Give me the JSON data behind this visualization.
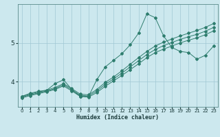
{
  "xlabel": "Humidex (Indice chaleur)",
  "bg_color": "#cce8ee",
  "line_color": "#2e7d6e",
  "grid_color": "#a0c8d4",
  "xlim": [
    -0.5,
    23.5
  ],
  "ylim": [
    3.35,
    6.0
  ],
  "yticks": [
    4,
    5
  ],
  "xticks": [
    0,
    1,
    2,
    3,
    4,
    5,
    6,
    7,
    8,
    9,
    10,
    11,
    12,
    13,
    14,
    15,
    16,
    17,
    18,
    19,
    20,
    21,
    22,
    23
  ],
  "series": {
    "line_volatile": {
      "x": [
        0,
        1,
        2,
        3,
        4,
        5,
        6,
        7,
        8,
        9,
        10,
        11,
        12,
        13,
        14,
        15,
        16,
        17,
        18,
        19,
        20,
        21,
        22,
        23
      ],
      "y": [
        3.62,
        3.7,
        3.75,
        3.78,
        3.95,
        4.05,
        3.8,
        3.62,
        3.62,
        4.05,
        4.38,
        4.55,
        4.72,
        4.95,
        5.25,
        5.75,
        5.65,
        5.18,
        4.88,
        4.78,
        4.75,
        4.58,
        4.68,
        4.92
      ]
    },
    "line_top": {
      "x": [
        0,
        1,
        2,
        3,
        4,
        5,
        6,
        7,
        8,
        9,
        10,
        11,
        12,
        13,
        14,
        15,
        16,
        17,
        18,
        19,
        20,
        21,
        22,
        23
      ],
      "y": [
        3.62,
        3.68,
        3.73,
        3.78,
        3.85,
        3.95,
        3.82,
        3.68,
        3.66,
        3.8,
        3.98,
        4.12,
        4.28,
        4.45,
        4.62,
        4.78,
        4.92,
        5.02,
        5.1,
        5.18,
        5.25,
        5.32,
        5.4,
        5.5
      ]
    },
    "line_mid": {
      "x": [
        0,
        1,
        2,
        3,
        4,
        5,
        6,
        7,
        8,
        9,
        10,
        11,
        12,
        13,
        14,
        15,
        16,
        17,
        18,
        19,
        20,
        21,
        22,
        23
      ],
      "y": [
        3.6,
        3.66,
        3.71,
        3.76,
        3.82,
        3.92,
        3.79,
        3.65,
        3.63,
        3.76,
        3.93,
        4.07,
        4.22,
        4.38,
        4.54,
        4.7,
        4.83,
        4.93,
        5.01,
        5.09,
        5.16,
        5.22,
        5.3,
        5.4
      ]
    },
    "line_bot": {
      "x": [
        0,
        1,
        2,
        3,
        4,
        5,
        6,
        7,
        8,
        9,
        10,
        11,
        12,
        13,
        14,
        15,
        16,
        17,
        18,
        19,
        20,
        21,
        22,
        23
      ],
      "y": [
        3.58,
        3.64,
        3.69,
        3.74,
        3.8,
        3.89,
        3.76,
        3.62,
        3.6,
        3.72,
        3.88,
        4.02,
        4.16,
        4.31,
        4.46,
        4.62,
        4.75,
        4.84,
        4.92,
        5.0,
        5.07,
        5.13,
        5.21,
        5.31
      ]
    }
  }
}
